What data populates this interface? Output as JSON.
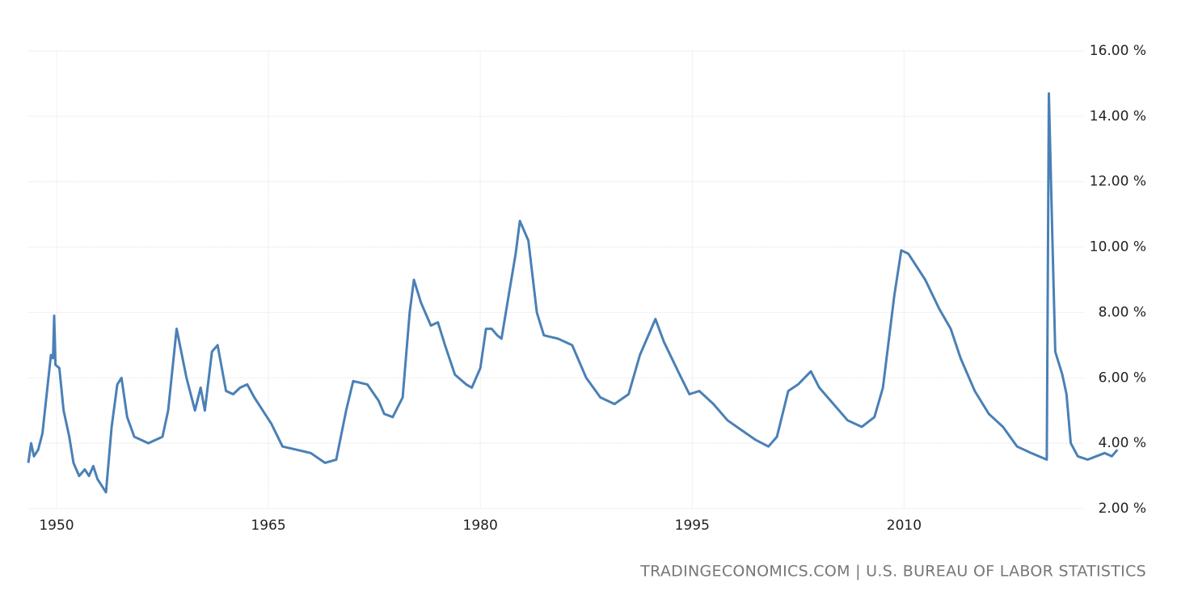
{
  "chart_data": {
    "type": "line",
    "color": "#4a80b6",
    "source": "TRADINGECONOMICS.COM | U.S. BUREAU OF LABOR STATISTICS",
    "xlim": [
      1948,
      2025.2
    ],
    "xticks": [
      1950,
      1965,
      1980,
      1995,
      2010
    ],
    "ylim": [
      2,
      16
    ],
    "yticks": [
      {
        "value": 2,
        "label": "2.00 %"
      },
      {
        "value": 4,
        "label": "4.00 %"
      },
      {
        "value": 6,
        "label": "6.00 %"
      },
      {
        "value": 8,
        "label": "8.00 %"
      },
      {
        "value": 10,
        "label": "10.00 %"
      },
      {
        "value": 12,
        "label": "12.00 %"
      },
      {
        "value": 14,
        "label": "14.00 %"
      },
      {
        "value": 16,
        "label": "16.00 %"
      }
    ],
    "grid": true,
    "x": [
      1948.0,
      1948.2,
      1948.4,
      1948.7,
      1949.0,
      1949.4,
      1949.6,
      1949.75,
      1949.83,
      1949.92,
      1950.2,
      1950.5,
      1950.9,
      1951.2,
      1951.6,
      1952.0,
      1952.3,
      1952.6,
      1952.9,
      1953.2,
      1953.5,
      1953.9,
      1954.3,
      1954.6,
      1955.0,
      1955.5,
      1956.5,
      1957.5,
      1957.9,
      1958.5,
      1959.2,
      1959.8,
      1960.2,
      1960.5,
      1961.0,
      1961.4,
      1962.0,
      1962.5,
      1963.0,
      1963.5,
      1964.0,
      1964.6,
      1965.2,
      1966.0,
      1967.0,
      1968.0,
      1969.0,
      1969.8,
      1970.5,
      1971.0,
      1972.0,
      1972.8,
      1973.2,
      1973.8,
      1974.5,
      1975.0,
      1975.3,
      1975.8,
      1976.5,
      1977.0,
      1977.5,
      1978.2,
      1979.0,
      1979.4,
      1980.0,
      1980.4,
      1980.8,
      1981.2,
      1981.5,
      1982.0,
      1982.5,
      1982.8,
      1983.4,
      1984.0,
      1984.5,
      1985.5,
      1986.5,
      1987.5,
      1988.5,
      1989.5,
      1990.5,
      1991.3,
      1992.4,
      1993.0,
      1994.0,
      1994.8,
      1995.5,
      1996.5,
      1997.5,
      1998.5,
      1999.5,
      2000.4,
      2001.0,
      2001.8,
      2002.5,
      2003.4,
      2004.0,
      2005.0,
      2006.0,
      2007.0,
      2007.9,
      2008.5,
      2009.3,
      2009.8,
      2010.3,
      2010.9,
      2011.5,
      2012.5,
      2013.3,
      2014.0,
      2015.0,
      2016.0,
      2017.0,
      2018.0,
      2019.0,
      2020.1,
      2020.25,
      2020.5,
      2020.7,
      2021.2,
      2021.5,
      2021.8,
      2022.3,
      2023.0,
      2023.6,
      2024.2,
      2024.7,
      2025.1
    ],
    "values": [
      3.4,
      4.0,
      3.6,
      3.8,
      4.3,
      5.9,
      6.7,
      6.6,
      7.9,
      6.4,
      6.3,
      5.0,
      4.2,
      3.4,
      3.0,
      3.2,
      3.0,
      3.3,
      2.9,
      2.7,
      2.5,
      4.5,
      5.8,
      6.0,
      4.8,
      4.2,
      4.0,
      4.2,
      5.0,
      7.5,
      6.0,
      5.0,
      5.7,
      5.0,
      6.8,
      7.0,
      5.6,
      5.5,
      5.7,
      5.8,
      5.4,
      5.0,
      4.6,
      3.9,
      3.8,
      3.7,
      3.4,
      3.5,
      5.0,
      5.9,
      5.8,
      5.3,
      4.9,
      4.8,
      5.4,
      8.0,
      9.0,
      8.3,
      7.6,
      7.7,
      7.0,
      6.1,
      5.8,
      5.7,
      6.3,
      7.5,
      7.5,
      7.3,
      7.2,
      8.5,
      9.8,
      10.8,
      10.2,
      8.0,
      7.3,
      7.2,
      7.0,
      6.0,
      5.4,
      5.2,
      5.5,
      6.7,
      7.8,
      7.1,
      6.2,
      5.5,
      5.6,
      5.2,
      4.7,
      4.4,
      4.1,
      3.9,
      4.2,
      5.6,
      5.8,
      6.2,
      5.7,
      5.2,
      4.7,
      4.5,
      4.8,
      5.7,
      8.5,
      9.9,
      9.8,
      9.4,
      9.0,
      8.1,
      7.5,
      6.6,
      5.6,
      4.9,
      4.5,
      3.9,
      3.7,
      3.5,
      14.7,
      10.2,
      6.8,
      6.1,
      5.5,
      4.0,
      3.6,
      3.5,
      3.6,
      3.7,
      3.6,
      3.8
    ]
  }
}
